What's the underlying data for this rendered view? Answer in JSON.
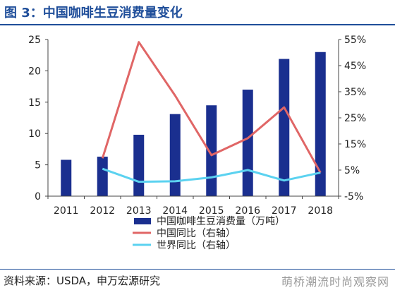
{
  "header": {
    "title": "图 3：中国咖啡生豆消费量变化"
  },
  "footer": {
    "source": "资料来源：USDA，申万宏源研究",
    "watermark": "萌桥潮流时尚观察网"
  },
  "chart_data": {
    "type": "bar",
    "categories": [
      "2011",
      "2012",
      "2013",
      "2014",
      "2015",
      "2016",
      "2017",
      "2018"
    ],
    "series": [
      {
        "name": "中国咖啡生豆消费量（万吨）",
        "type": "bar",
        "axis": "left",
        "color": "#1a2f8f",
        "values": [
          5.8,
          6.3,
          9.8,
          13.1,
          14.5,
          17.0,
          21.9,
          23.0
        ]
      },
      {
        "name": "中国同比（右轴）",
        "type": "line",
        "axis": "right",
        "color": "#e06666",
        "values": [
          null,
          9.5,
          54.0,
          33.5,
          10.7,
          17.2,
          29.0,
          4.0
        ]
      },
      {
        "name": "世界同比（右轴）",
        "type": "line",
        "axis": "right",
        "color": "#5bd2f0",
        "values": [
          null,
          5.5,
          0.5,
          0.7,
          2.2,
          5.0,
          1.0,
          4.0
        ]
      }
    ],
    "y_left": {
      "min": 0,
      "max": 25,
      "ticks": [
        "0",
        "5",
        "10",
        "15",
        "20",
        "25"
      ]
    },
    "y_right": {
      "min": -5,
      "max": 55,
      "ticks": [
        "-5%",
        "5%",
        "15%",
        "25%",
        "35%",
        "45%",
        "55%"
      ]
    },
    "legend_position": "bottom-center",
    "grid": false
  }
}
